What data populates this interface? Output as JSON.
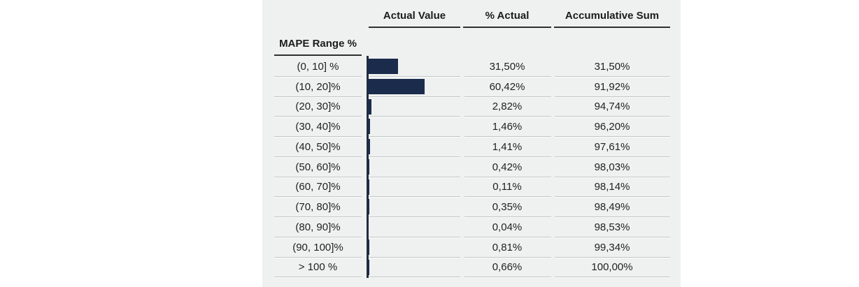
{
  "table": {
    "row_header_title": "MAPE Range %",
    "columns": [
      "Actual Value",
      "% Actual",
      "Accumulative Sum"
    ],
    "rows": [
      {
        "range": "(0, 10] %",
        "actual": "31,50%",
        "accum": "31,50%"
      },
      {
        "range": "(10, 20]%",
        "actual": "60,42%",
        "accum": "91,92%"
      },
      {
        "range": "(20, 30]%",
        "actual": "2,82%",
        "accum": "94,74%"
      },
      {
        "range": "(30, 40]%",
        "actual": "1,46%",
        "accum": "96,20%"
      },
      {
        "range": "(40, 50]%",
        "actual": "1,41%",
        "accum": "97,61%"
      },
      {
        "range": "(50, 60]%",
        "actual": "0,42%",
        "accum": "98,03%"
      },
      {
        "range": "(60, 70]%",
        "actual": "0,11%",
        "accum": "98,14%"
      },
      {
        "range": "(70, 80]%",
        "actual": "0,35%",
        "accum": "98,49%"
      },
      {
        "range": "(80, 90]%",
        "actual": "0,04%",
        "accum": "98,53%"
      },
      {
        "range": "(90, 100]%",
        "actual": "0,81%",
        "accum": "99,34%"
      },
      {
        "range": "> 100 %",
        "actual": "0,66%",
        "accum": "100,00%"
      }
    ]
  },
  "chart_data": {
    "type": "bar",
    "orientation": "horizontal",
    "title": "",
    "xlabel": "MAPE Range %",
    "ylabel": "% Actual",
    "categories": [
      "(0, 10] %",
      "(10, 20]%",
      "(20, 30]%",
      "(30, 40]%",
      "(40, 50]%",
      "(50, 60]%",
      "(60, 70]%",
      "(70, 80]%",
      "(80, 90]%",
      "(90, 100]%",
      "> 100 %"
    ],
    "series": [
      {
        "name": "% Actual",
        "values": [
          31.5,
          60.42,
          2.82,
          1.46,
          1.41,
          0.42,
          0.11,
          0.35,
          0.04,
          0.81,
          0.66
        ]
      },
      {
        "name": "Accumulative Sum",
        "values": [
          31.5,
          91.92,
          94.74,
          96.2,
          97.61,
          98.03,
          98.14,
          98.49,
          98.53,
          99.34,
          100.0
        ]
      }
    ],
    "xlim": [
      0,
      100
    ],
    "grid": false,
    "legend": false,
    "decimal_separator": ","
  },
  "colors": {
    "bar": "#1b2b4c",
    "axis_line": "#222c3f",
    "header_underline": "#2f2f2f",
    "row_divider": "#c2c6c8",
    "panel_background": "#eff1f1",
    "text": "#1c1c1c"
  }
}
